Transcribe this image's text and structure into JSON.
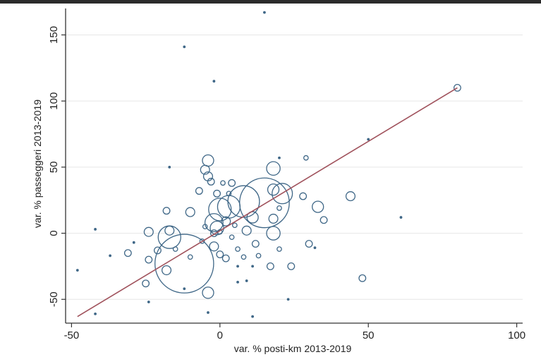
{
  "chart_data": {
    "type": "scatter",
    "xlabel": "var. % posti-km 2013-2019",
    "ylabel": "var. % passeggeri 2013-2019",
    "xlim": [
      -52,
      102
    ],
    "ylim": [
      -68,
      170
    ],
    "xticks": [
      -50,
      0,
      50,
      100
    ],
    "yticks": [
      -50,
      0,
      50,
      100,
      150
    ],
    "grid": true,
    "colors": {
      "marker": "#3f6787",
      "fit_line": "#a0525c",
      "grid": "#e6e6e6",
      "axis": "#333333"
    },
    "fit_line": {
      "x": [
        -48,
        80
      ],
      "y": [
        -63,
        110
      ]
    },
    "points": [
      {
        "x": 15,
        "y": 167,
        "s": 1
      },
      {
        "x": -12,
        "y": 141,
        "s": 1
      },
      {
        "x": -2,
        "y": 115,
        "s": 1
      },
      {
        "x": 80,
        "y": 110,
        "s": 3
      },
      {
        "x": 50,
        "y": 71,
        "s": 1
      },
      {
        "x": 29,
        "y": 57,
        "s": 2
      },
      {
        "x": 20,
        "y": 57,
        "s": 1
      },
      {
        "x": -17,
        "y": 50,
        "s": 1
      },
      {
        "x": -4,
        "y": 55,
        "s": 5
      },
      {
        "x": -5,
        "y": 48,
        "s": 4
      },
      {
        "x": -4,
        "y": 43,
        "s": 4
      },
      {
        "x": -3,
        "y": 39,
        "s": 3
      },
      {
        "x": 1,
        "y": 38,
        "s": 2
      },
      {
        "x": 4,
        "y": 38,
        "s": 3
      },
      {
        "x": 18,
        "y": 49,
        "s": 6
      },
      {
        "x": -1,
        "y": 30,
        "s": 3
      },
      {
        "x": 3,
        "y": 30,
        "s": 2
      },
      {
        "x": -7,
        "y": 32,
        "s": 3
      },
      {
        "x": 18,
        "y": 33,
        "s": 5
      },
      {
        "x": 21,
        "y": 30,
        "s": 9
      },
      {
        "x": 28,
        "y": 28,
        "s": 3
      },
      {
        "x": 44,
        "y": 28,
        "s": 4
      },
      {
        "x": 33,
        "y": 20,
        "s": 5
      },
      {
        "x": 35,
        "y": 10,
        "s": 3
      },
      {
        "x": 61,
        "y": 12,
        "s": 1
      },
      {
        "x": 15,
        "y": 23,
        "s": 22
      },
      {
        "x": 8,
        "y": 24,
        "s": 14
      },
      {
        "x": 3,
        "y": 20,
        "s": 10
      },
      {
        "x": 0,
        "y": 18,
        "s": 10
      },
      {
        "x": 11,
        "y": 12,
        "s": 5
      },
      {
        "x": 18,
        "y": 11,
        "s": 4
      },
      {
        "x": 20,
        "y": 19,
        "s": 2
      },
      {
        "x": 2,
        "y": 9,
        "s": 4
      },
      {
        "x": -2,
        "y": 8,
        "s": 8
      },
      {
        "x": -1,
        "y": 4,
        "s": 6
      },
      {
        "x": 5,
        "y": 6,
        "s": 2
      },
      {
        "x": 0,
        "y": 1,
        "s": 2
      },
      {
        "x": -2,
        "y": 0,
        "s": 3
      },
      {
        "x": 9,
        "y": 2,
        "s": 4
      },
      {
        "x": 18,
        "y": 0,
        "s": 6
      },
      {
        "x": 12,
        "y": -8,
        "s": 3
      },
      {
        "x": 20,
        "y": -12,
        "s": 2
      },
      {
        "x": 30,
        "y": -8,
        "s": 3
      },
      {
        "x": 32,
        "y": -11,
        "s": 1
      },
      {
        "x": -5,
        "y": 5,
        "s": 2
      },
      {
        "x": -10,
        "y": 16,
        "s": 4
      },
      {
        "x": -17,
        "y": -3,
        "s": 10
      },
      {
        "x": -17,
        "y": 2,
        "s": 4
      },
      {
        "x": -18,
        "y": 17,
        "s": 3
      },
      {
        "x": -24,
        "y": 1,
        "s": 4
      },
      {
        "x": -21,
        "y": -13,
        "s": 3
      },
      {
        "x": -24,
        "y": -20,
        "s": 3
      },
      {
        "x": -29,
        "y": -7,
        "s": 1
      },
      {
        "x": -31,
        "y": -15,
        "s": 3
      },
      {
        "x": -37,
        "y": -17,
        "s": 1
      },
      {
        "x": -42,
        "y": 3,
        "s": 1
      },
      {
        "x": -48,
        "y": -28,
        "s": 1
      },
      {
        "x": -42,
        "y": -61,
        "s": 1
      },
      {
        "x": -25,
        "y": -38,
        "s": 3
      },
      {
        "x": -24,
        "y": -52,
        "s": 1
      },
      {
        "x": -12,
        "y": -23,
        "s": 26
      },
      {
        "x": -10,
        "y": -18,
        "s": 2
      },
      {
        "x": -4,
        "y": -45,
        "s": 5
      },
      {
        "x": -12,
        "y": -42,
        "s": 1
      },
      {
        "x": -2,
        "y": -10,
        "s": 4
      },
      {
        "x": 0,
        "y": -16,
        "s": 3
      },
      {
        "x": 2,
        "y": -19,
        "s": 3
      },
      {
        "x": 6,
        "y": -12,
        "s": 2
      },
      {
        "x": 8,
        "y": -18,
        "s": 2
      },
      {
        "x": 6,
        "y": -25,
        "s": 1
      },
      {
        "x": 6,
        "y": -37,
        "s": 1
      },
      {
        "x": 9,
        "y": -36,
        "s": 1
      },
      {
        "x": 13,
        "y": -17,
        "s": 2
      },
      {
        "x": 11,
        "y": -25,
        "s": 1
      },
      {
        "x": 17,
        "y": -25,
        "s": 3
      },
      {
        "x": 24,
        "y": -25,
        "s": 3
      },
      {
        "x": 23,
        "y": -50,
        "s": 1
      },
      {
        "x": 11,
        "y": -63,
        "s": 1
      },
      {
        "x": -4,
        "y": -60,
        "s": 1
      },
      {
        "x": 48,
        "y": -34,
        "s": 3
      },
      {
        "x": -18,
        "y": -28,
        "s": 4
      },
      {
        "x": -6,
        "y": -6,
        "s": 2
      },
      {
        "x": -15,
        "y": -12,
        "s": 2
      },
      {
        "x": 4,
        "y": -3,
        "s": 2
      }
    ]
  }
}
